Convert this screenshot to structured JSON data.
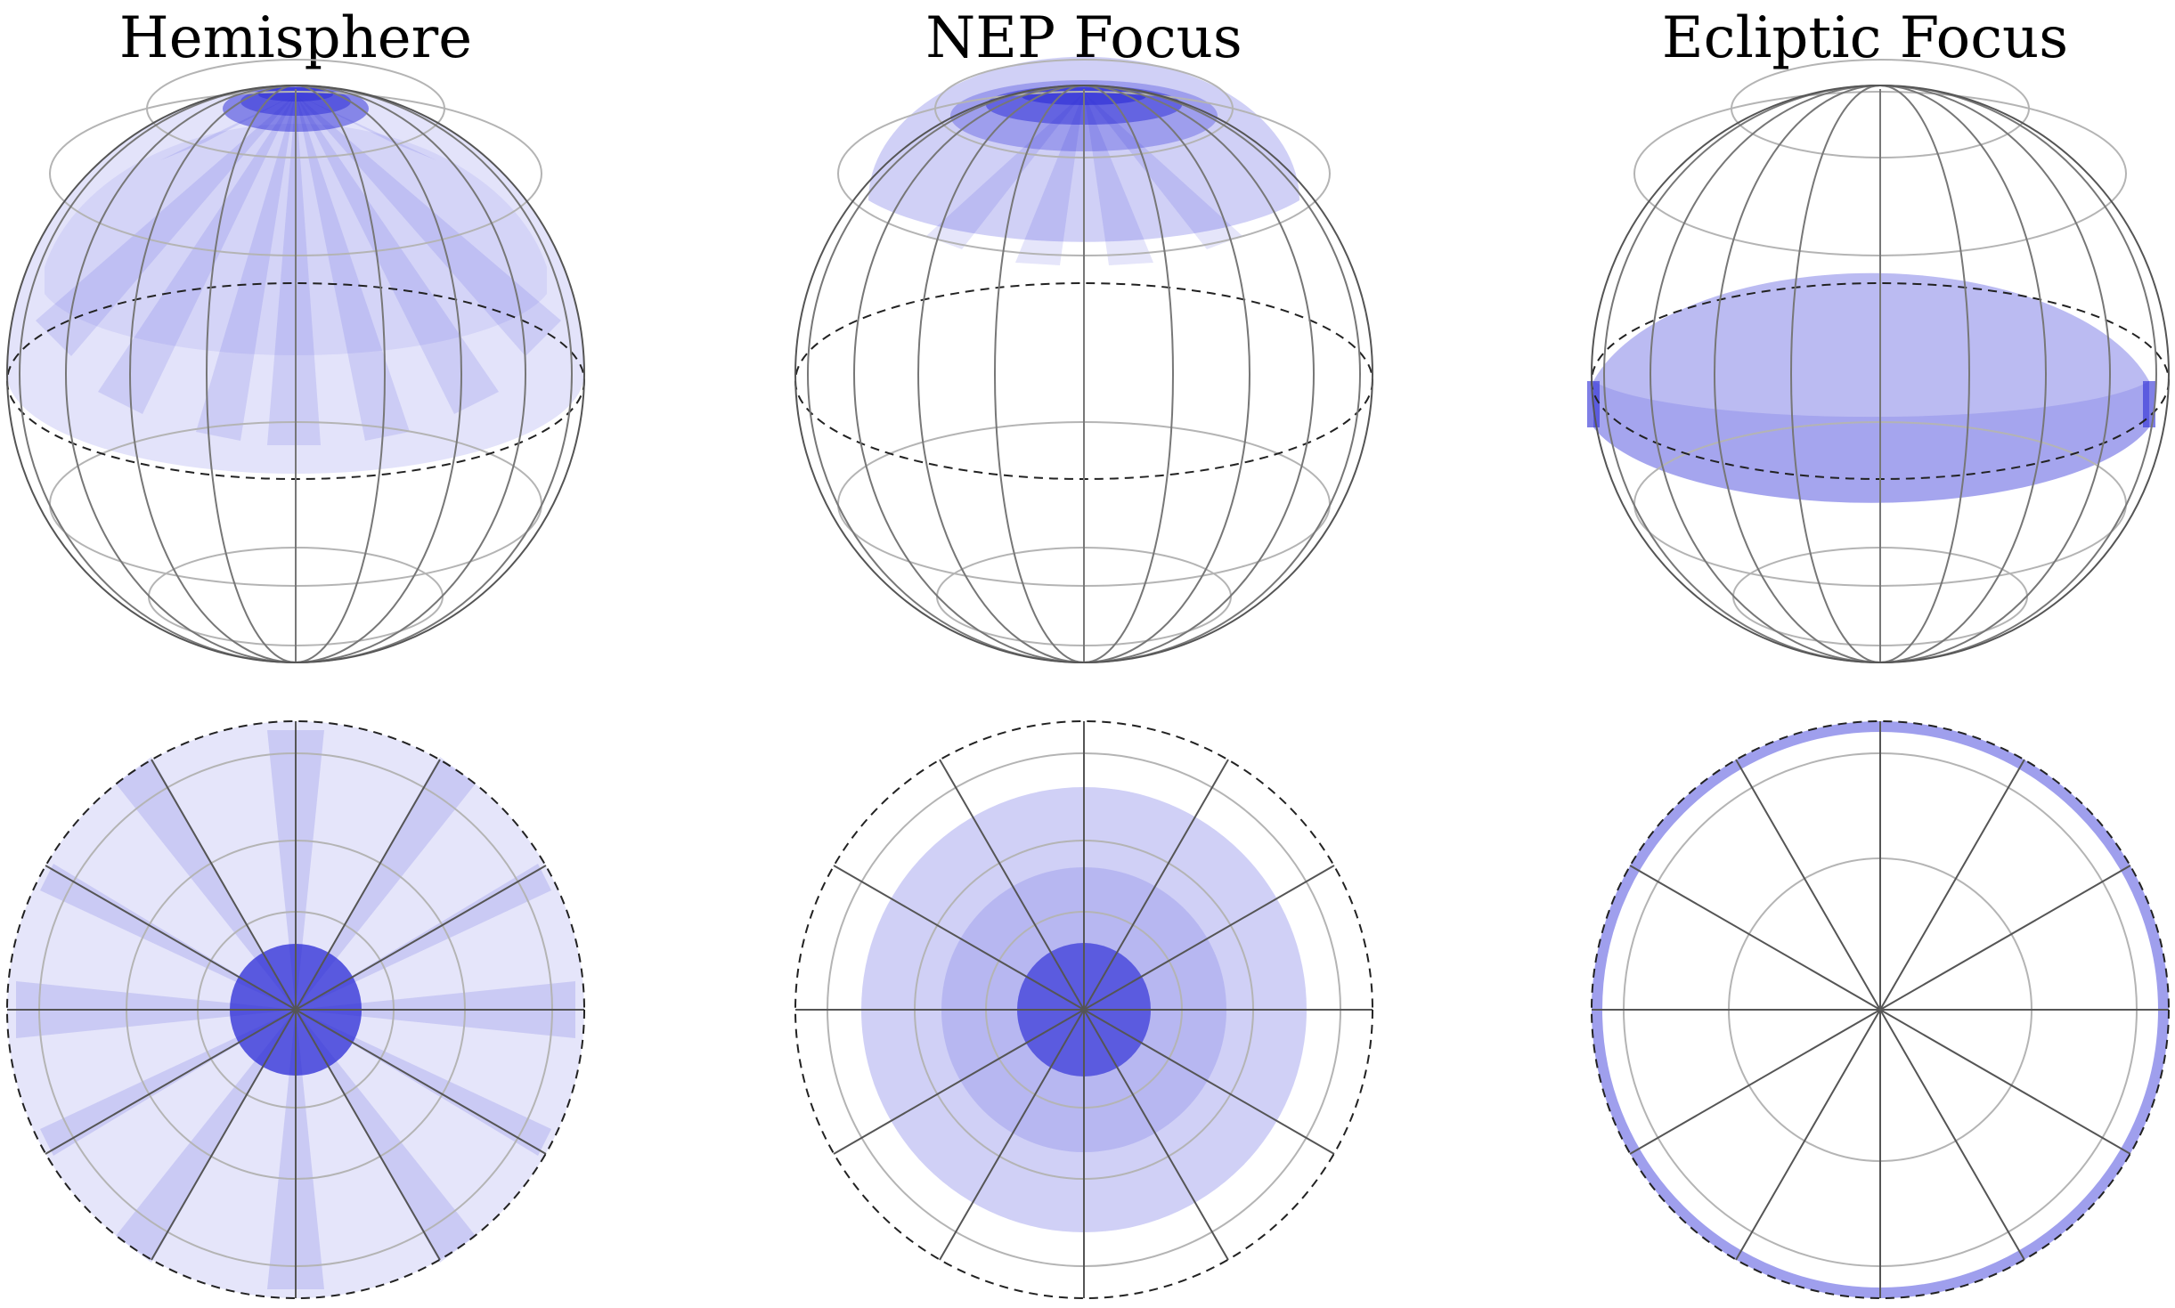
{
  "titles": {
    "hemisphere": "Hemisphere",
    "nep_focus": "NEP Focus",
    "ecliptic_focus": "Ecliptic Focus"
  },
  "colors": {
    "coverage": "#2a2ad6",
    "grid_light": "#b4b4b4",
    "grid_dark": "#555555",
    "outline": "#000000",
    "background": "#ffffff"
  },
  "panels": [
    {
      "id": "hemisphere-sphere",
      "view": "oblique",
      "coverage": "lat >= 0 (northern hemisphere)"
    },
    {
      "id": "nep-sphere",
      "view": "oblique",
      "coverage": "polar cap around north ecliptic pole"
    },
    {
      "id": "ecliptic-sphere",
      "view": "oblique",
      "coverage": "band around ecliptic"
    },
    {
      "id": "hemisphere-polar",
      "view": "polar"
    },
    {
      "id": "nep-polar",
      "view": "polar"
    },
    {
      "id": "ecliptic-polar",
      "view": "polar"
    }
  ]
}
